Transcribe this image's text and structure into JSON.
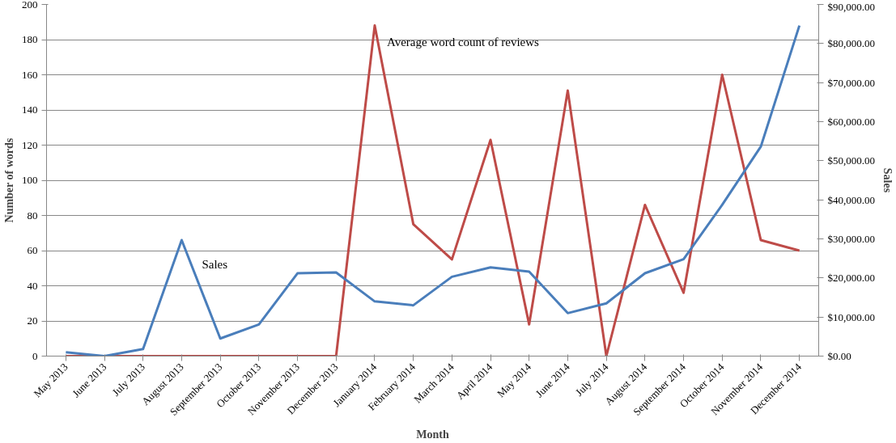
{
  "chart_data": {
    "type": "line",
    "xlabel": "Month",
    "ylabel": "Number of words",
    "y2label": "Sales",
    "categories": [
      "May 2013",
      "June 2013",
      "July 2013",
      "August 2013",
      "September 2013",
      "October 2013",
      "November 2013",
      "December 2013",
      "January 2014",
      "February 2014",
      "March 2014",
      "April 2014",
      "May 2014",
      "June 2014",
      "July 2014",
      "August 2014",
      "September 2014",
      "October 2014",
      "November 2014",
      "December 2014"
    ],
    "series": [
      {
        "name": "Average word count of reviews",
        "color": "#be4b48",
        "values": [
          0,
          0,
          0,
          0,
          0,
          0,
          0,
          0,
          188,
          75,
          55,
          123,
          18,
          151,
          0,
          86,
          36,
          160,
          66,
          60
        ]
      },
      {
        "name": "Sales",
        "color": "#4a7ebb",
        "axis": "y2",
        "values": [
          1000,
          0,
          1800,
          29700,
          4500,
          8100,
          21200,
          21400,
          14000,
          13000,
          20300,
          22700,
          21600,
          11000,
          13500,
          21200,
          24800,
          38700,
          53600,
          84600
        ]
      }
    ],
    "ylim": [
      0,
      200
    ],
    "yticks": [
      0,
      20,
      40,
      60,
      80,
      100,
      120,
      140,
      160,
      180,
      200
    ],
    "y2lim": [
      0,
      90000
    ],
    "y2ticks": [
      {
        "value": 0,
        "label": "$0.00"
      },
      {
        "value": 10000,
        "label": "$10,000.00"
      },
      {
        "value": 20000,
        "label": "$20,000.00"
      },
      {
        "value": 30000,
        "label": "$30,000.00"
      },
      {
        "value": 40000,
        "label": "$40,000.00"
      },
      {
        "value": 50000,
        "label": "$50,000.00"
      },
      {
        "value": 60000,
        "label": "$60,000.00"
      },
      {
        "value": 70000,
        "label": "$70,000.00"
      },
      {
        "value": 80000,
        "label": "$80,000.00"
      },
      {
        "value": 90000,
        "label": "$90,000.00"
      }
    ],
    "grid": "y",
    "marker": "none",
    "line_style": "solid"
  }
}
